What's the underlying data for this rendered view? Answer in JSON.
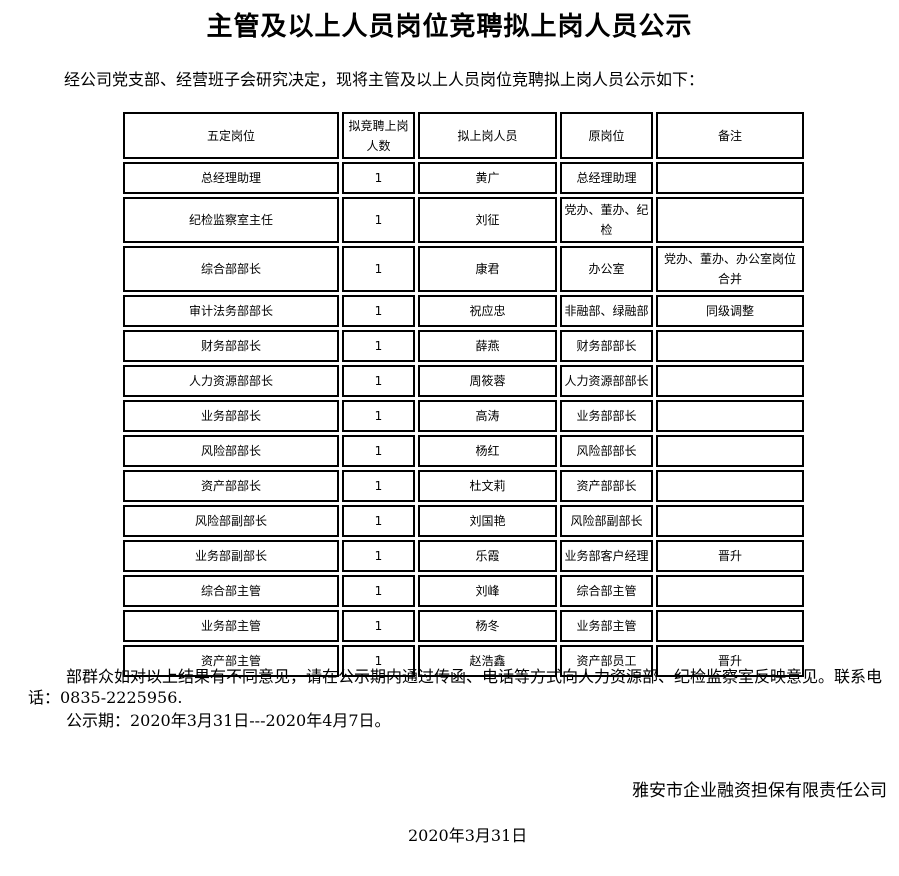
{
  "title": "主管及以上人员岗位竞聘拟上岗人员公示",
  "intro": "经公司党支部、经营班子会研究决定，现将主管及以上人员岗位竞聘拟上岗人员公示如下：",
  "table": {
    "headers": [
      "五定岗位",
      "拟竞聘上岗人数",
      "拟上岗人员",
      "原岗位",
      "备注"
    ],
    "rows": [
      [
        "总经理助理",
        "1",
        "黄广",
        "总经理助理",
        ""
      ],
      [
        "纪检监察室主任",
        "1",
        "刘征",
        "党办、董办、纪检",
        ""
      ],
      [
        "综合部部长",
        "1",
        "康君",
        "办公室",
        "党办、董办、办公室岗位合并"
      ],
      [
        "审计法务部部长",
        "1",
        "祝应忠",
        "非融部、绿融部",
        "同级调整"
      ],
      [
        "财务部部长",
        "1",
        "薛燕",
        "财务部部长",
        ""
      ],
      [
        "人力资源部部长",
        "1",
        "周筱蓉",
        "人力资源部部长",
        ""
      ],
      [
        "业务部部长",
        "1",
        "高涛",
        "业务部部长",
        ""
      ],
      [
        "风险部部长",
        "1",
        "杨红",
        "风险部部长",
        ""
      ],
      [
        "资产部部长",
        "1",
        "杜文莉",
        "资产部部长",
        ""
      ],
      [
        "风险部副部长",
        "1",
        "刘国艳",
        "风险部副部长",
        ""
      ],
      [
        "业务部副部长",
        "1",
        "乐霞",
        "业务部客户经理",
        "晋升"
      ],
      [
        "综合部主管",
        "1",
        "刘峰",
        "综合部主管",
        ""
      ],
      [
        "业务部主管",
        "1",
        "杨冬",
        "业务部主管",
        ""
      ],
      [
        "资产部主管",
        "1",
        "赵浩鑫",
        "资产部员工",
        "晋升"
      ]
    ]
  },
  "notice": "部群众如对以上结果有不同意见，请在公示期内通过传函、电话等方式向人力资源部、纪检监察室反映意见。联系电话：0835-2225956.",
  "period": "公示期：2020年3月31日---2020年4月7日。",
  "company": "雅安市企业融资担保有限责任公司",
  "date": "2020年3月31日"
}
